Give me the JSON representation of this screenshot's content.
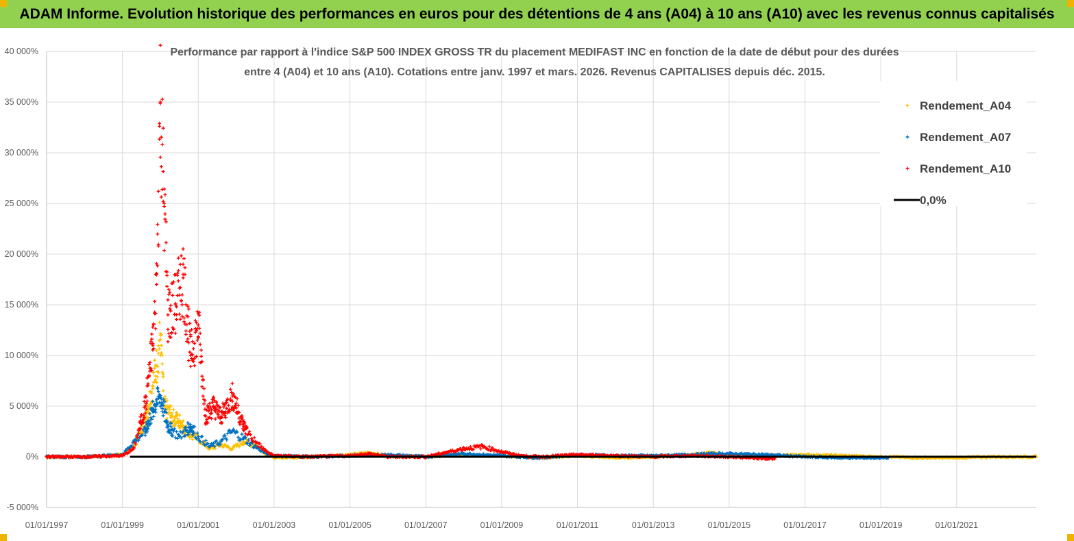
{
  "banner": {
    "title": "ADAM Informe. Evolution historique des performances en euros pour des détentions de 4 ans (A04) à 10 ans (A10) avec les revenus connus capitalisés",
    "bg_color": "#92d050",
    "corner_color": "#f0b400"
  },
  "chart_data": {
    "type": "scatter",
    "title": "Performance par rapport à l'indice S&P 500 INDEX GROSS TR  du placement MEDIFAST INC en fonction de la date de début pour des durées entre 4 (A04) et 10 ans (A10). Cotations entre janv. 1997 et mars. 2026. Revenus CAPITALISES depuis déc. 2015.",
    "title_lines": [
      "Performance par rapport à l'indice S&P 500 INDEX GROSS TR  du placement MEDIFAST INC en fonction de la date de début pour des durées",
      "entre 4 (A04) et 10 ans (A10). Cotations entre janv. 1997 et mars. 2026. Revenus CAPITALISES depuis déc. 2015."
    ],
    "xlabel": "",
    "ylabel": "",
    "x_ticks": [
      "01/01/1997",
      "01/01/1999",
      "01/01/2001",
      "01/01/2003",
      "01/01/2005",
      "01/01/2007",
      "01/01/2009",
      "01/01/2011",
      "01/01/2013",
      "01/01/2015",
      "01/01/2017",
      "01/01/2019",
      "01/01/2021"
    ],
    "xlim": [
      1997.0,
      2023.1
    ],
    "y_ticks": [
      "40 000%",
      "35 000%",
      "30 000%",
      "25 000%",
      "20 000%",
      "15 000%",
      "10 000%",
      "5 000%",
      "0%",
      "-5 000%"
    ],
    "ylim": [
      -5000,
      40000
    ],
    "grid": true,
    "legend": {
      "placement": "top-right",
      "entries": [
        "Rendement_A04",
        "Rendement_A07",
        "Rendement_A10",
        "0,0%"
      ]
    },
    "series": [
      {
        "name": "Rendement_A04",
        "color": "#ffc000",
        "x_range": [
          1997.0,
          2023.1
        ],
        "x": [
          1997.0,
          1998.0,
          1999.0,
          1999.3,
          1999.6,
          1999.8,
          1999.9,
          2000.0,
          2000.1,
          2000.3,
          2000.5,
          2000.8,
          2001.0,
          2001.3,
          2001.6,
          2001.9,
          2002.2,
          2002.5,
          2002.8,
          2003.0,
          2004.0,
          2005.0,
          2005.5,
          2006.0,
          2007.0,
          2008.0,
          2008.5,
          2009.0,
          2010.0,
          2011.0,
          2012.0,
          2013.0,
          2014.0,
          2014.5,
          2015.0,
          2016.0,
          2017.0,
          2018.0,
          2019.0,
          2020.0,
          2021.0,
          2022.0,
          2023.1
        ],
        "y": [
          0,
          0,
          200,
          1000,
          3500,
          7000,
          9000,
          12000,
          5000,
          4000,
          3500,
          2000,
          1800,
          800,
          1200,
          800,
          1500,
          1200,
          200,
          -100,
          0,
          200,
          400,
          100,
          0,
          200,
          100,
          100,
          -100,
          100,
          -100,
          0,
          200,
          400,
          100,
          100,
          200,
          100,
          0,
          -100,
          -100,
          0,
          0
        ]
      },
      {
        "name": "Rendement_A07",
        "color": "#0070c0",
        "x_range": [
          1997.0,
          2019.2
        ],
        "x": [
          1997.0,
          1998.0,
          1999.0,
          1999.3,
          1999.6,
          1999.8,
          1999.9,
          2000.0,
          2000.2,
          2000.5,
          2000.8,
          2001.0,
          2001.3,
          2001.6,
          2001.9,
          2002.2,
          2002.5,
          2002.8,
          2003.0,
          2004.0,
          2005.0,
          2006.0,
          2007.0,
          2008.0,
          2008.5,
          2009.0,
          2010.0,
          2011.0,
          2012.0,
          2013.0,
          2014.0,
          2014.5,
          2015.0,
          2016.0,
          2017.0,
          2018.0,
          2019.2
        ],
        "y": [
          0,
          0,
          200,
          1500,
          2500,
          4500,
          5500,
          6000,
          3000,
          2000,
          3000,
          2000,
          1000,
          1500,
          2500,
          1800,
          1000,
          300,
          100,
          0,
          100,
          200,
          0,
          300,
          200,
          100,
          -100,
          200,
          100,
          100,
          200,
          300,
          300,
          200,
          0,
          -100,
          -100
        ]
      },
      {
        "name": "Rendement_A10",
        "color": "#ff0000",
        "x_range": [
          1997.0,
          2016.2
        ],
        "x": [
          1997.0,
          1998.0,
          1999.0,
          1999.3,
          1999.6,
          1999.8,
          1999.9,
          2000.0,
          2000.1,
          2000.2,
          2000.4,
          2000.6,
          2000.8,
          2001.0,
          2001.2,
          2001.4,
          2001.6,
          2001.9,
          2002.2,
          2002.5,
          2002.8,
          2003.0,
          2004.0,
          2005.0,
          2005.5,
          2006.0,
          2007.0,
          2007.5,
          2008.0,
          2008.5,
          2009.0,
          2009.5,
          2010.0,
          2011.0,
          2012.0,
          2013.0,
          2014.0,
          2015.0,
          2016.2
        ],
        "y": [
          0,
          0,
          100,
          800,
          5000,
          11000,
          17000,
          35000,
          25000,
          14000,
          15000,
          18000,
          10000,
          13000,
          4000,
          5000,
          4000,
          6000,
          3000,
          1500,
          500,
          100,
          0,
          100,
          300,
          0,
          0,
          400,
          800,
          1000,
          500,
          100,
          0,
          200,
          100,
          0,
          100,
          0,
          -200
        ]
      },
      {
        "name": "0,0%",
        "color": "#000000",
        "x": [
          1999.2,
          2023.1
        ],
        "y": [
          0,
          0
        ]
      }
    ]
  }
}
